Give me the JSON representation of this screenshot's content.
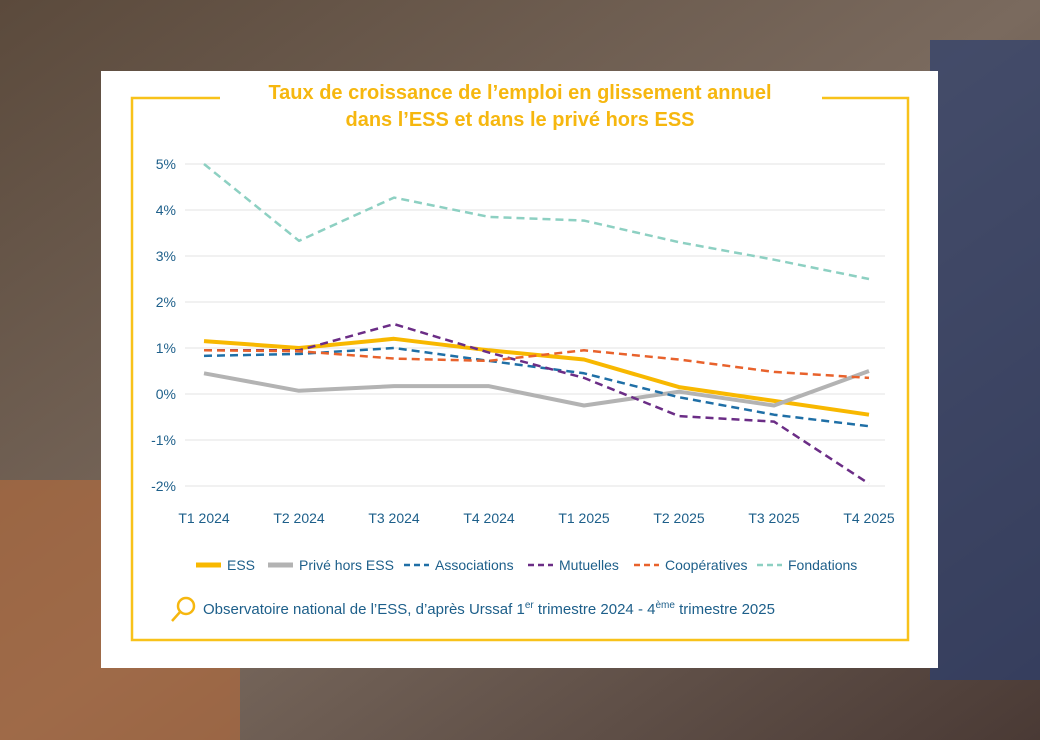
{
  "chart_data": {
    "type": "line",
    "title": [
      "Taux de croissance de l’emploi en glissement annuel",
      "dans l’ESS et dans le privé hors ESS"
    ],
    "categories": [
      "T1 2024",
      "T2 2024",
      "T3 2024",
      "T4 2024",
      "T1 2025",
      "T2 2025",
      "T3 2025",
      "T4 2025"
    ],
    "series": [
      {
        "name": "ESS",
        "color": "#f8b800",
        "dashed": false,
        "values": [
          1.15,
          1.0,
          1.2,
          0.95,
          0.75,
          0.15,
          -0.15,
          -0.45
        ]
      },
      {
        "name": "Privé hors ESS",
        "color": "#b3b3b3",
        "dashed": false,
        "values": [
          0.45,
          0.07,
          0.17,
          0.17,
          -0.25,
          0.05,
          -0.25,
          0.5
        ]
      },
      {
        "name": "Associations",
        "color": "#1f6fa6",
        "dashed": true,
        "values": [
          0.83,
          0.87,
          1.0,
          0.72,
          0.45,
          -0.07,
          -0.45,
          -0.7
        ]
      },
      {
        "name": "Mutuelles",
        "color": "#6b2d86",
        "dashed": true,
        "values": [
          0.95,
          0.95,
          1.52,
          0.9,
          0.35,
          -0.48,
          -0.6,
          -1.95
        ]
      },
      {
        "name": "Coopératives",
        "color": "#e8622c",
        "dashed": true,
        "values": [
          0.95,
          0.93,
          0.77,
          0.72,
          0.95,
          0.75,
          0.48,
          0.35
        ]
      },
      {
        "name": "Fondations",
        "color": "#8dd0c2",
        "dashed": true,
        "values": [
          5.0,
          3.33,
          4.27,
          3.85,
          3.77,
          3.3,
          2.92,
          2.5
        ]
      }
    ],
    "ylim": [
      -2,
      5
    ],
    "yticks": [
      {
        "value": 5,
        "label": "5%"
      },
      {
        "value": 4,
        "label": "4%"
      },
      {
        "value": 3,
        "label": "3%"
      },
      {
        "value": 2,
        "label": "2%"
      },
      {
        "value": 1,
        "label": "1%"
      },
      {
        "value": 0,
        "label": "0%"
      },
      {
        "value": -1,
        "label": "-1%"
      },
      {
        "value": -2,
        "label": "-2%"
      }
    ],
    "grid": true,
    "source": [
      "Observatoire national de l’ESS, d’après Urssaf 1",
      "er",
      " trimestre 2024 - 4",
      "ème",
      " trimestre 2025"
    ]
  }
}
